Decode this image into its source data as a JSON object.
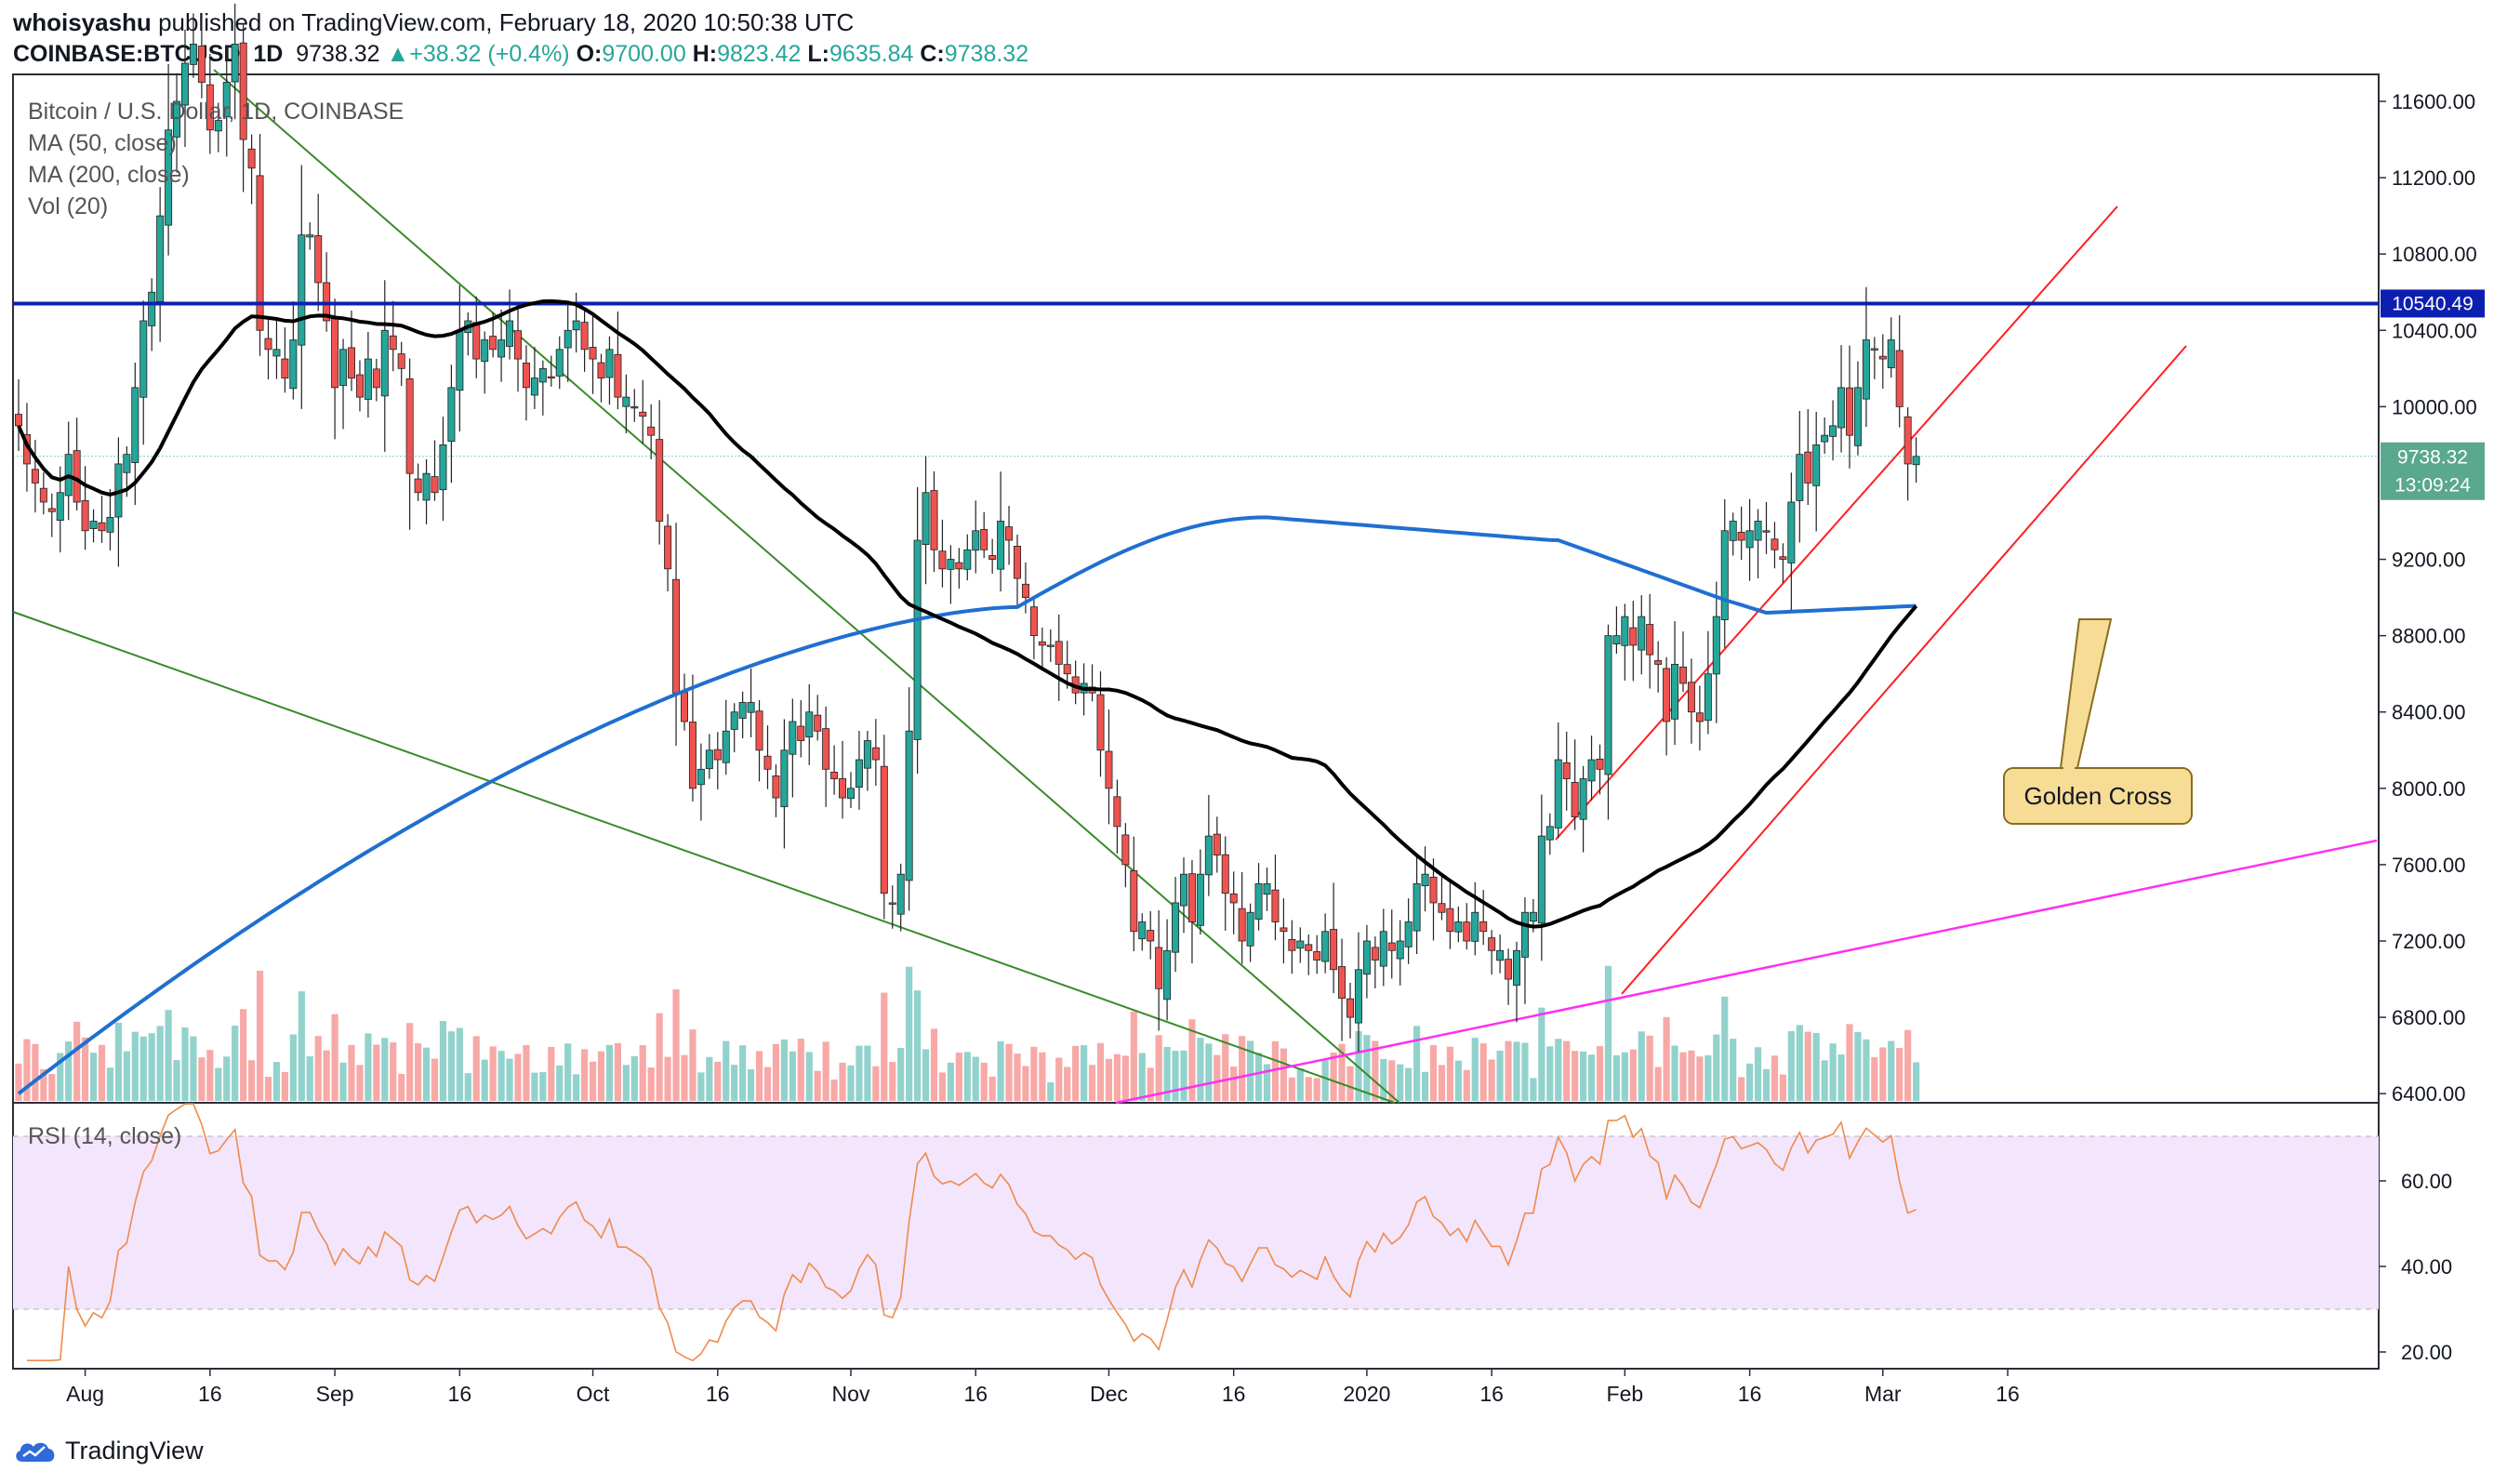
{
  "header": {
    "author": "whoisyashu",
    "published_text": "published on TradingView.com, February 18, 2020 10:50:38 UTC",
    "symbol": "COINBASE:BTCUSD, 1D",
    "last": "9738.32",
    "change_arrow": "▲",
    "change": "+38.32 (+0.4%)",
    "open_label": "O:",
    "open": "9700.00",
    "high_label": "H:",
    "high": "9823.42",
    "low_label": "L:",
    "low": "9635.84",
    "close_label": "C:",
    "close": "9738.32"
  },
  "legend": {
    "title": "Bitcoin / U.S. Dollar, 1D, COINBASE",
    "ma50": "MA (50, close)",
    "ma200": "MA (200, close)",
    "vol": "Vol (20)",
    "rsi": "RSI (14, close)"
  },
  "price_axis": {
    "ticks": [
      "11600.00",
      "11200.00",
      "10800.00",
      "10400.00",
      "10000.00",
      "9200.00",
      "8800.00",
      "8400.00",
      "8000.00",
      "7600.00",
      "7200.00",
      "6800.00",
      "6400.00"
    ],
    "ticks_values": [
      11600,
      11200,
      10800,
      10400,
      10000,
      9200,
      8800,
      8400,
      8000,
      7600,
      7200,
      6800,
      6400
    ],
    "resistance_label": "10540.49",
    "last_label": "9738.32",
    "countdown_label": "13:09:24"
  },
  "rsi_axis": {
    "ticks": [
      "60.00",
      "40.00",
      "20.00"
    ],
    "ticks_values": [
      60,
      40,
      20
    ]
  },
  "time_axis": {
    "labels": [
      "Aug",
      "16",
      "Sep",
      "16",
      "Oct",
      "16",
      "Nov",
      "16",
      "Dec",
      "16",
      "2020",
      "16",
      "Feb",
      "16",
      "Mar",
      "16"
    ]
  },
  "annotation": {
    "label": "Golden Cross"
  },
  "brand": {
    "name": "TradingView"
  },
  "colors": {
    "up": "#26a69a",
    "down": "#ef5350",
    "resistance": "#0d1fb0",
    "ma50": "#000000",
    "ma200": "#1f6fd1",
    "channel": "#ff1f1f",
    "support": "#ff2ff0",
    "downtrend": "#3a8a2a",
    "rsi_line": "#f08a4b",
    "rsi_band": "#f3e5fb",
    "callout": "#f7dc96"
  },
  "chart_data": {
    "type": "candlestick",
    "title": "Bitcoin / U.S. Dollar, 1D, COINBASE",
    "start_date": "2019-07-24",
    "end_date": "2020-02-18",
    "ylim": [
      6350,
      11800
    ],
    "resistance_level": 10540.49,
    "close_series": [
      9900,
      9700,
      9600,
      9500,
      9450,
      9550,
      9750,
      9500,
      9350,
      9400,
      9350,
      9420,
      9700,
      9750,
      10100,
      10450,
      10600,
      11000,
      11450,
      11600,
      11800,
      11900,
      11700,
      11450,
      11500,
      11700,
      11900,
      11400,
      11250,
      10400,
      10300,
      10300,
      10150,
      10350,
      10900,
      10900,
      10650,
      10450,
      10100,
      10300,
      10150,
      10050,
      10250,
      10100,
      10400,
      10300,
      10200,
      9650,
      9550,
      9650,
      9550,
      9800,
      10100,
      10400,
      10450,
      10250,
      10350,
      10300,
      10350,
      10450,
      10250,
      10100,
      10150,
      10200,
      10150,
      10300,
      10400,
      10450,
      10300,
      10250,
      10150,
      10300,
      10050,
      10050,
      10000,
      9950,
      9850,
      9400,
      9150,
      8500,
      8350,
      8000,
      8100,
      8200,
      8150,
      8300,
      8400,
      8450,
      8450,
      8200,
      8100,
      7950,
      8200,
      8350,
      8250,
      8400,
      8300,
      8100,
      8050,
      7950,
      8000,
      8150,
      8250,
      8150,
      7450,
      7400,
      7550,
      8300,
      9300,
      9550,
      9250,
      9150,
      9200,
      9150,
      9250,
      9350,
      9250,
      9200,
      9400,
      9300,
      9100,
      9000,
      8800,
      8750,
      8750,
      8650,
      8600,
      8500,
      8550,
      8500,
      8200,
      8000,
      7800,
      7600,
      7250,
      7300,
      7200,
      6950,
      7150,
      7400,
      7550,
      7300,
      7550,
      7750,
      7650,
      7450,
      7400,
      7200,
      7350,
      7500,
      7500,
      7300,
      7250,
      7150,
      7200,
      7150,
      7100,
      7250,
      7050,
      6900,
      6800,
      7050,
      7200,
      7100,
      7250,
      7150,
      7200,
      7300,
      7500,
      7550,
      7400,
      7350,
      7250,
      7300,
      7200,
      7350,
      7250,
      7150,
      7150,
      7000,
      7150,
      7350,
      7350,
      7750,
      7800,
      8150,
      8050,
      7850,
      8050,
      8150,
      8100,
      8800,
      8800,
      8900,
      8750,
      8900,
      8700,
      8650,
      8350,
      8650,
      8550,
      8400,
      8350,
      8600,
      8900,
      9350,
      9400,
      9300,
      9350,
      9400,
      9350,
      9250,
      9200,
      9500,
      9750,
      9600,
      9800,
      9850,
      9900,
      10100,
      9850,
      10100,
      10350,
      10300,
      10250,
      10350,
      10000,
      9700,
      9740
    ]
  }
}
